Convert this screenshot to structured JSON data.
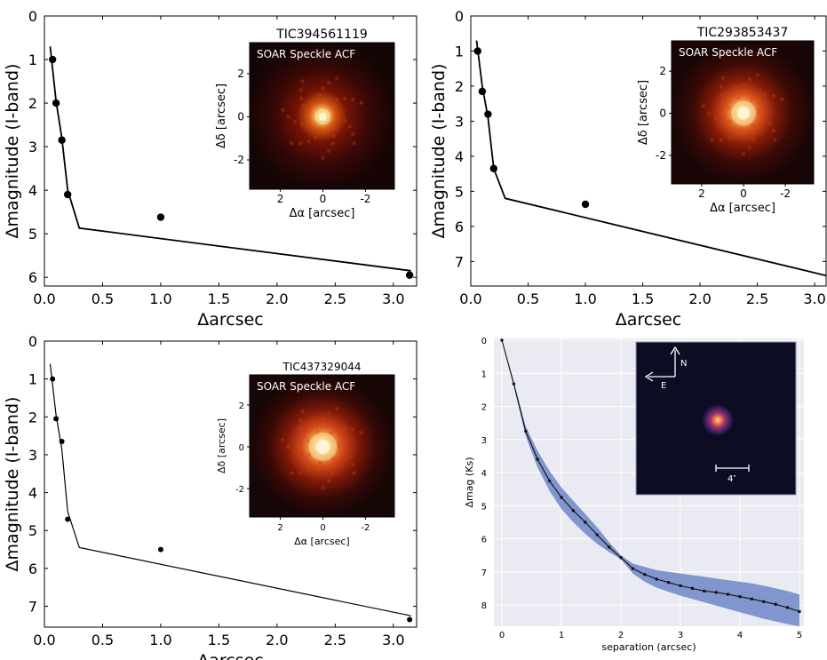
{
  "colors": {
    "curve": "#000000",
    "points": "#000000",
    "speckle_bg": "#140505",
    "speckle_core": "#ffe8b0",
    "speckle_mid": "#d0400c",
    "panel4_bg": "#eaeaf2",
    "panel4_band": "#6f86c8",
    "image_bg": "#0c0c24"
  },
  "chart_data": [
    {
      "type": "line",
      "xlabel": "Δarcsec",
      "ylabel": "Δmagnitude (I-band)",
      "xlim": [
        0,
        3.2
      ],
      "ylim": [
        6.2,
        0
      ],
      "xticks": [
        "0.0",
        "0.5",
        "1.0",
        "1.5",
        "2.0",
        "2.5",
        "3.0"
      ],
      "yticks": [
        "0",
        "1",
        "2",
        "3",
        "4",
        "5",
        "6"
      ],
      "contrast_curve": {
        "x": [
          0.05,
          0.1,
          0.15,
          0.2,
          0.3,
          3.15
        ],
        "y": [
          0.7,
          1.95,
          2.8,
          4.0,
          4.87,
          5.85
        ]
      },
      "points": {
        "x": [
          0.07,
          0.1,
          0.15,
          0.2,
          1.0,
          3.14
        ],
        "y": [
          1.0,
          2.0,
          2.85,
          4.1,
          4.62,
          5.95
        ]
      },
      "inset": {
        "title": "TIC394561119",
        "label": "SOAR Speckle ACF",
        "xlabel": "Δα [arcsec]",
        "ylabel": "Δδ [arcsec]",
        "xticks": [
          "2",
          "0",
          "-2"
        ],
        "yticks": [
          "2",
          "0",
          "-2"
        ]
      }
    },
    {
      "type": "line",
      "xlabel": "Δarcsec",
      "ylabel": "Δmagnitude (I-band)",
      "xlim": [
        0,
        3.1
      ],
      "ylim": [
        7.7,
        0
      ],
      "xticks": [
        "0.0",
        "0.5",
        "1.0",
        "1.5",
        "2.0",
        "2.5",
        "3.0"
      ],
      "yticks": [
        "0",
        "1",
        "2",
        "3",
        "4",
        "5",
        "6",
        "7"
      ],
      "contrast_curve": {
        "x": [
          0.05,
          0.1,
          0.15,
          0.2,
          0.3,
          3.1
        ],
        "y": [
          0.7,
          2.0,
          2.9,
          4.35,
          5.2,
          7.4
        ]
      },
      "points": {
        "x": [
          0.06,
          0.1,
          0.15,
          0.2,
          1.0
        ],
        "y": [
          1.0,
          2.15,
          2.8,
          4.35,
          5.37
        ]
      },
      "inset": {
        "title": "TIC293853437",
        "label": "SOAR Speckle ACF",
        "xlabel": "Δα [arcsec]",
        "ylabel": "Δδ [arcsec]",
        "xticks": [
          "2",
          "0",
          "-2"
        ],
        "yticks": [
          "2",
          "0",
          "-2"
        ]
      }
    },
    {
      "type": "line",
      "xlabel": "Δarcsec",
      "ylabel": "Δmagnitude (I-band)",
      "xlim": [
        0,
        3.2
      ],
      "ylim": [
        7.55,
        0
      ],
      "xticks": [
        "0.0",
        "0.5",
        "1.0",
        "1.5",
        "2.0",
        "2.5",
        "3.0"
      ],
      "yticks": [
        "0",
        "1",
        "2",
        "3",
        "4",
        "5",
        "6",
        "7"
      ],
      "contrast_curve": {
        "x": [
          0.05,
          0.1,
          0.15,
          0.2,
          0.3,
          3.15
        ],
        "y": [
          0.6,
          1.95,
          2.85,
          4.5,
          5.45,
          7.25
        ]
      },
      "points": {
        "x": [
          0.07,
          0.1,
          0.15,
          0.2,
          1.0,
          3.14
        ],
        "y": [
          1.0,
          2.05,
          2.65,
          4.7,
          5.5,
          7.35
        ]
      },
      "inset": {
        "title": "TIC437329044",
        "label": "SOAR Speckle ACF",
        "xlabel": "Δα [arcsec]",
        "ylabel": "Δδ [arcsec]",
        "xticks": [
          "2",
          "0",
          "-2"
        ],
        "yticks": [
          "2",
          "0",
          "-2"
        ]
      }
    },
    {
      "type": "area",
      "xlabel": "separation (arcsec)",
      "ylabel": "Δmag (Ks)",
      "xlim": [
        0,
        5.1
      ],
      "ylim": [
        8.6,
        0
      ],
      "xticks": [
        "0",
        "1",
        "2",
        "3",
        "4",
        "5"
      ],
      "yticks": [
        "0",
        "1",
        "2",
        "3",
        "4",
        "5",
        "6",
        "7",
        "8"
      ],
      "curve": {
        "x": [
          0,
          0.2,
          0.4,
          0.6,
          0.8,
          1.0,
          1.2,
          1.4,
          1.6,
          1.8,
          2.0,
          2.2,
          2.4,
          2.6,
          2.8,
          3.0,
          3.2,
          3.4,
          3.6,
          3.8,
          4.0,
          4.2,
          4.4,
          4.6,
          4.8,
          5.0
        ],
        "y": [
          0,
          1.32,
          2.75,
          3.6,
          4.25,
          4.75,
          5.15,
          5.5,
          5.88,
          6.25,
          6.57,
          6.9,
          7.08,
          7.22,
          7.32,
          7.42,
          7.5,
          7.58,
          7.62,
          7.68,
          7.75,
          7.82,
          7.9,
          7.98,
          8.08,
          8.2
        ]
      },
      "band_upper": [
        0,
        1.25,
        2.6,
        3.35,
        3.95,
        4.45,
        4.85,
        5.25,
        5.65,
        6.1,
        6.5,
        6.75,
        6.85,
        6.95,
        7.0,
        7.05,
        7.1,
        7.15,
        7.2,
        7.25,
        7.3,
        7.35,
        7.42,
        7.5,
        7.58,
        7.68
      ],
      "band_lower": [
        0,
        1.4,
        2.9,
        3.85,
        4.55,
        5.1,
        5.5,
        5.85,
        6.15,
        6.4,
        6.62,
        7.05,
        7.3,
        7.48,
        7.6,
        7.72,
        7.82,
        7.92,
        8.02,
        8.12,
        8.22,
        8.32,
        8.42,
        8.5,
        8.58,
        8.65
      ],
      "inset": {
        "north": "N",
        "east": "E",
        "scale": "4″"
      }
    }
  ]
}
